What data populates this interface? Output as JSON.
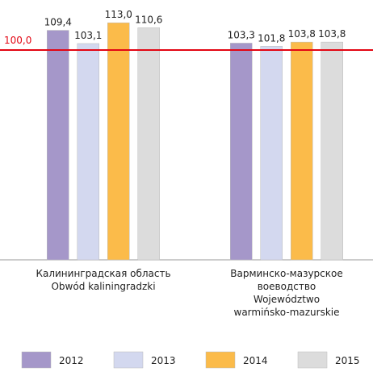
{
  "chart_data": {
    "type": "bar",
    "categories": [
      "Калининградская область\nObwód kaliningradzki",
      "Варминско-мазурское\nвоеводство\nWojewództwo\nwarmińsko-mazurskie"
    ],
    "series": [
      {
        "name": "2012",
        "color": "#a597c9",
        "values": [
          109.4,
          103.3
        ],
        "value_labels": [
          "109,4",
          "103,3"
        ]
      },
      {
        "name": "2013",
        "color": "#d3d8ef",
        "values": [
          103.1,
          101.8
        ],
        "value_labels": [
          "103,1",
          "101,8"
        ]
      },
      {
        "name": "2014",
        "color": "#fbbb4a",
        "values": [
          113.0,
          103.8
        ],
        "value_labels": [
          "113,0",
          "103,8"
        ]
      },
      {
        "name": "2015",
        "color": "#dcdcdc",
        "values": [
          110.6,
          103.8
        ],
        "value_labels": [
          "110,6",
          "103,8"
        ]
      }
    ],
    "ylim": [
      0,
      120
    ],
    "reference_line": {
      "value": 100,
      "label": "100,0",
      "color": "#e30613"
    },
    "legend": "bottom"
  }
}
